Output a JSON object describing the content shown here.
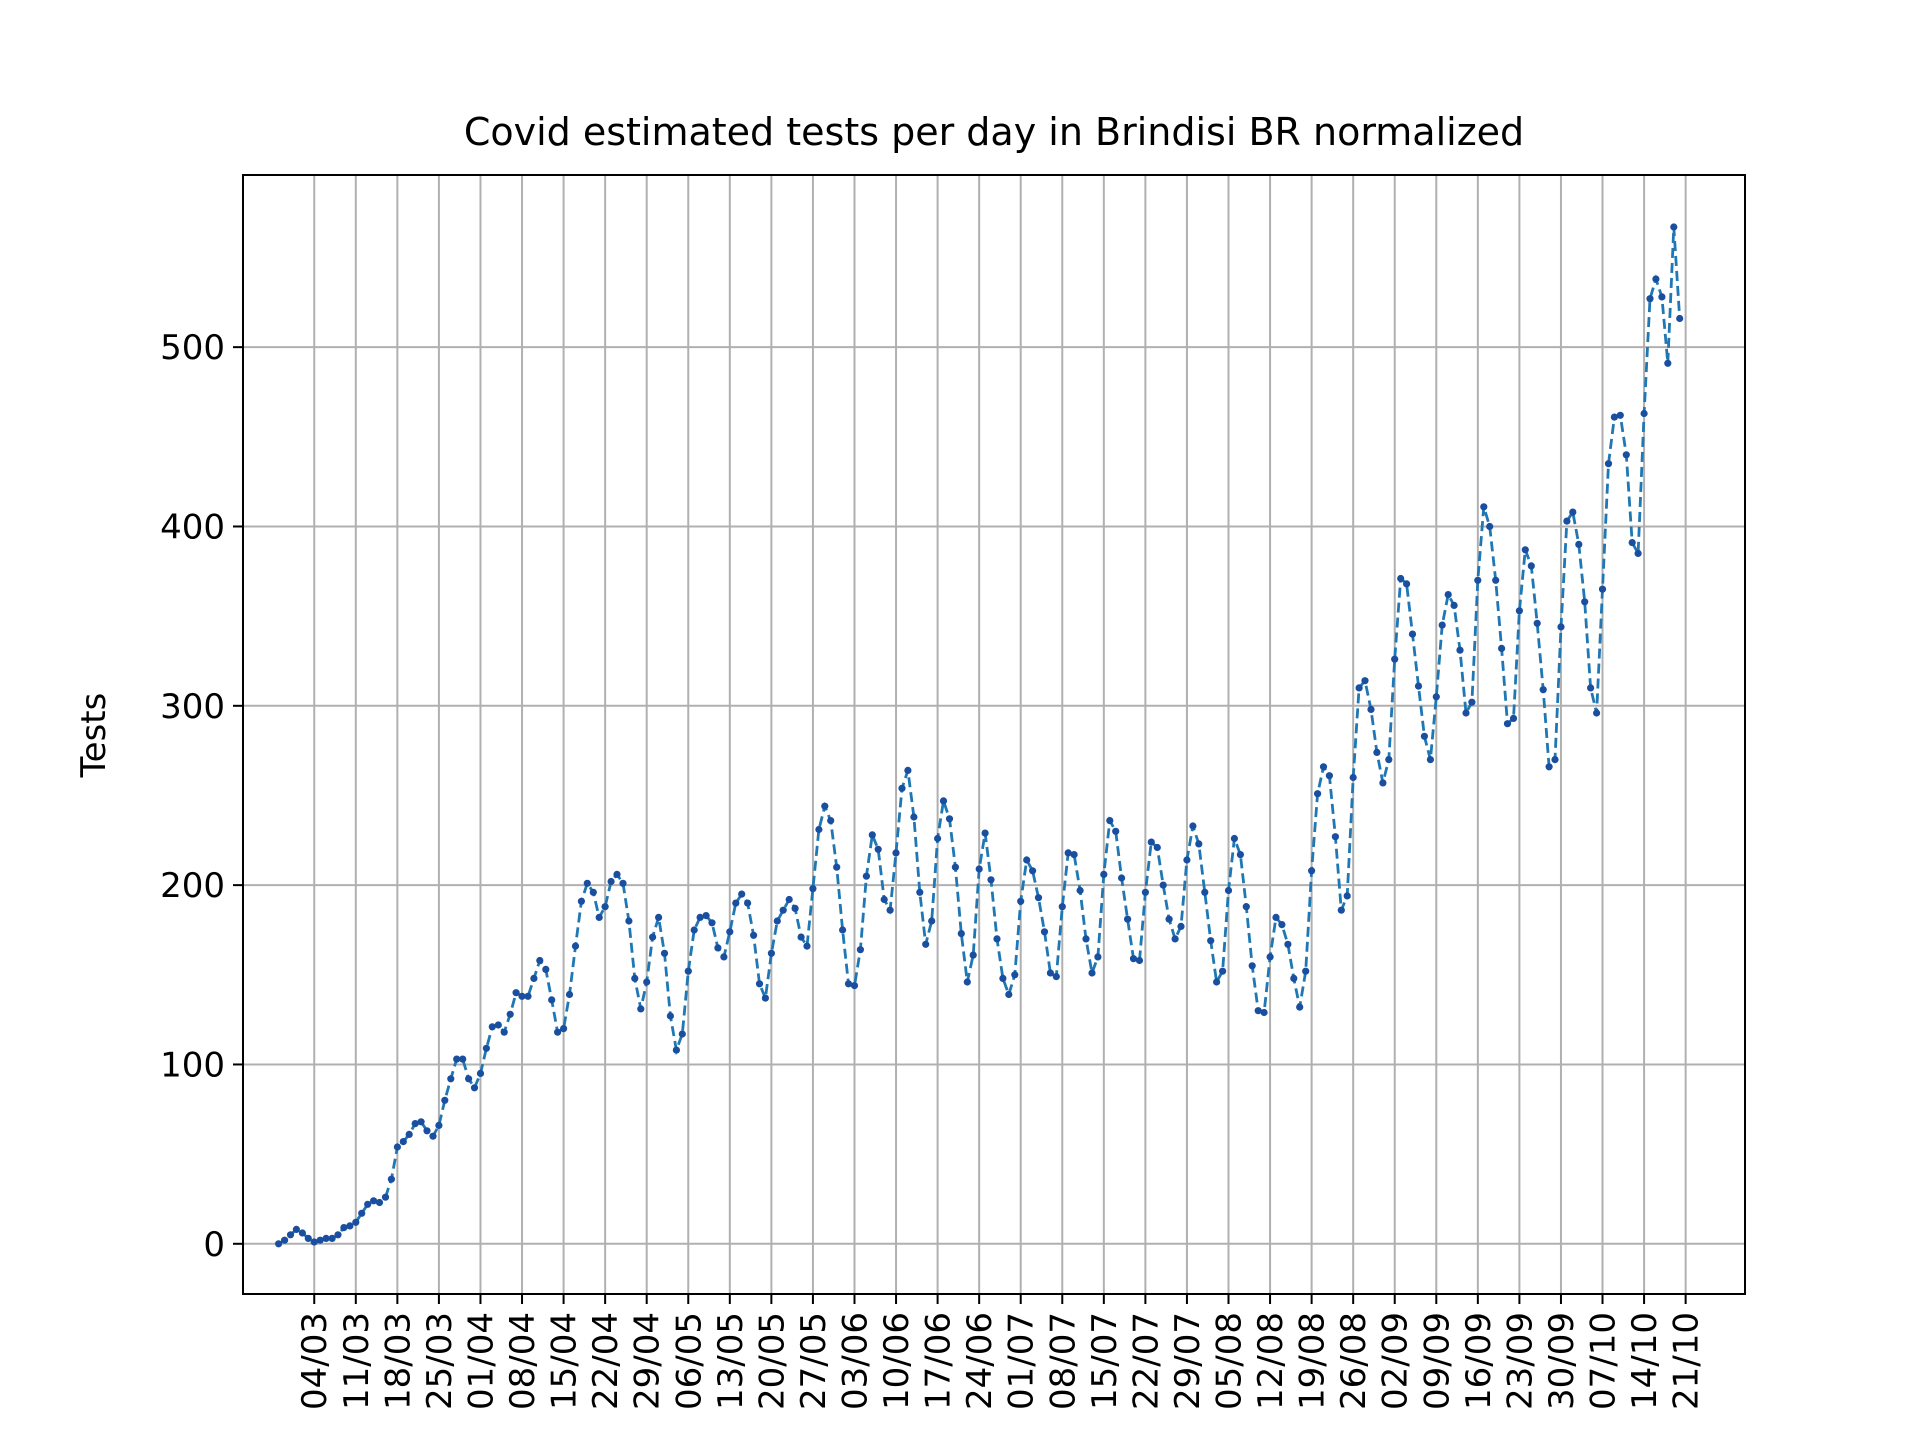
{
  "chart_data": {
    "type": "line",
    "title": "Covid estimated tests per day in Brindisi BR normalized",
    "xlabel": "",
    "ylabel": "Tests",
    "grid": true,
    "line_style": "dashed",
    "marker": "dot",
    "line_color": "#1f77b4",
    "marker_color": "#1a4fa0",
    "x_start": "27/02",
    "xlim": [
      "21/02",
      "31/10"
    ],
    "ylim": [
      -28,
      596
    ],
    "yticks": [
      0,
      100,
      200,
      300,
      400,
      500
    ],
    "xticks": [
      "04/03",
      "11/03",
      "18/03",
      "25/03",
      "01/04",
      "08/04",
      "15/04",
      "22/04",
      "29/04",
      "06/05",
      "13/05",
      "20/05",
      "27/05",
      "03/06",
      "10/06",
      "17/06",
      "24/06",
      "01/07",
      "08/07",
      "15/07",
      "22/07",
      "29/07",
      "05/08",
      "12/08",
      "19/08",
      "26/08",
      "02/09",
      "09/09",
      "16/09",
      "23/09",
      "30/09",
      "07/10",
      "14/10",
      "21/10"
    ],
    "values": [
      0,
      2,
      5,
      8,
      6,
      3,
      1,
      2,
      3,
      3,
      5,
      9,
      10,
      12,
      17,
      22,
      24,
      23,
      26,
      36,
      54,
      57,
      61,
      67,
      68,
      63,
      60,
      66,
      80,
      92,
      103,
      103,
      92,
      87,
      95,
      109,
      121,
      122,
      118,
      128,
      140,
      138,
      138,
      148,
      158,
      153,
      136,
      118,
      120,
      139,
      166,
      191,
      201,
      196,
      182,
      188,
      202,
      206,
      201,
      180,
      148,
      131,
      146,
      171,
      182,
      162,
      127,
      108,
      117,
      152,
      175,
      182,
      183,
      179,
      165,
      160,
      174,
      190,
      195,
      190,
      172,
      145,
      137,
      162,
      180,
      186,
      192,
      187,
      171,
      166,
      198,
      231,
      244,
      236,
      210,
      175,
      145,
      144,
      164,
      205,
      228,
      220,
      192,
      186,
      218,
      254,
      264,
      238,
      196,
      167,
      180,
      226,
      247,
      237,
      210,
      173,
      146,
      161,
      209,
      229,
      203,
      170,
      148,
      139,
      150,
      191,
      214,
      208,
      193,
      174,
      151,
      149,
      188,
      218,
      217,
      197,
      170,
      151,
      160,
      206,
      236,
      230,
      204,
      181,
      159,
      158,
      196,
      224,
      221,
      200,
      181,
      170,
      177,
      214,
      233,
      223,
      196,
      169,
      146,
      152,
      197,
      226,
      217,
      188,
      155,
      130,
      129,
      160,
      182,
      178,
      167,
      148,
      132,
      152,
      208,
      251,
      266,
      261,
      227,
      186,
      194,
      260,
      310,
      314,
      298,
      274,
      257,
      270,
      326,
      371,
      368,
      340,
      311,
      283,
      270,
      305,
      345,
      362,
      356,
      331,
      296,
      302,
      370,
      411,
      400,
      370,
      332,
      290,
      293,
      353,
      387,
      378,
      346,
      309,
      266,
      270,
      344,
      403,
      408,
      390,
      358,
      310,
      296,
      365,
      435,
      461,
      462,
      440,
      391,
      385,
      463,
      527,
      538,
      528,
      491,
      567,
      516
    ]
  }
}
